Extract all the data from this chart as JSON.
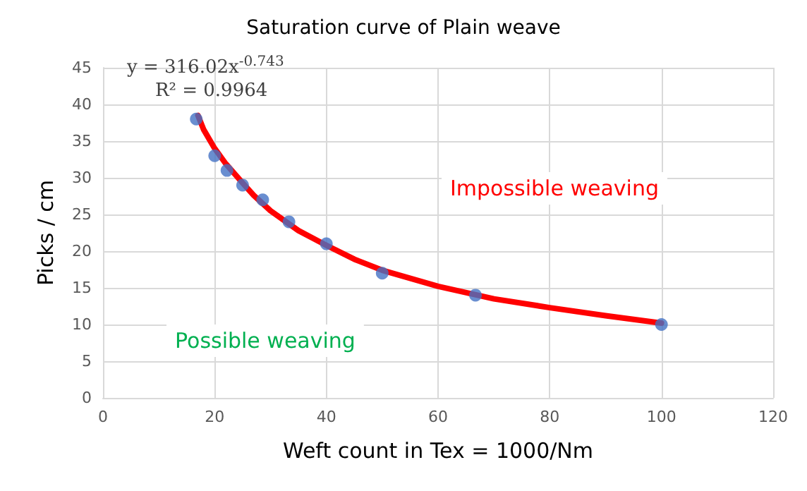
{
  "chart_data": {
    "type": "scatter",
    "title": "Saturation curve of Plain weave",
    "xlabel": "Weft count in Tex = 1000/Nm",
    "ylabel": "Picks / cm",
    "xlim": [
      0,
      120
    ],
    "xticks": [
      0,
      20,
      40,
      60,
      80,
      100,
      120
    ],
    "ylim": [
      0,
      45
    ],
    "yticks": [
      0,
      5,
      10,
      15,
      20,
      25,
      30,
      35,
      40,
      45
    ],
    "grid": true,
    "marker": "circle",
    "series": [
      {
        "color": "#4472c4",
        "x": [
          16.7,
          20,
          22.2,
          25,
          28.6,
          33.3,
          40,
          50,
          66.7,
          100
        ],
        "values": [
          38,
          33,
          31,
          29,
          27,
          24,
          21,
          17,
          14,
          10
        ]
      },
      {
        "type": "line",
        "color": "#ff0000",
        "marker": "none",
        "line_style": "solid",
        "x": [
          17,
          18,
          20,
          22,
          25,
          27,
          30,
          35,
          40,
          45,
          50,
          60,
          70,
          80,
          90,
          100
        ],
        "values": [
          38.5,
          36.6,
          34,
          31.9,
          29.3,
          27.6,
          25.5,
          22.8,
          20.8,
          18.9,
          17.4,
          15.2,
          13.5,
          12.3,
          11.2,
          10.2
        ]
      }
    ],
    "annotations": [
      "y = 316.02x$^{-0.743}$",
      "R² = 0.9964",
      "Impossible weaving",
      "Possible weaving"
    ]
  }
}
